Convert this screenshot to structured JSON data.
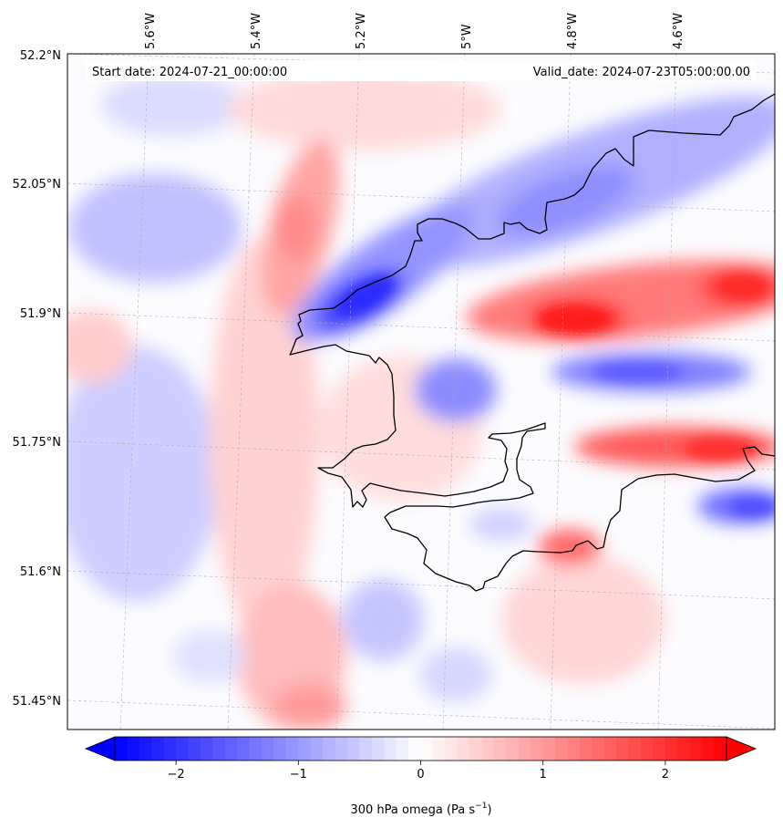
{
  "map": {
    "start_date_label": "Start date: 2024-07-21_00:00:00",
    "valid_date_label": "Valid_date: 2024-07-23T05:00:00.00",
    "longitude_ticks": [
      "5.6°W",
      "5.4°W",
      "5.2°W",
      "5°W",
      "4.8°W",
      "4.6°W"
    ],
    "latitude_ticks": [
      "52.2°N",
      "52.05°N",
      "51.9°N",
      "51.75°N",
      "51.6°N",
      "51.45°N"
    ],
    "field": "omega",
    "level": "300 hPa",
    "colormap": "bwr",
    "coastline_color": "#000000",
    "gridlines": true
  },
  "colorbar": {
    "label_prefix": "300 hPa omega (Pa s",
    "label_exponent": "−1",
    "label_suffix": ")",
    "tick_labels": [
      "−2",
      "−1",
      "0",
      "1",
      "2"
    ],
    "tick_values": [
      -2,
      -1,
      0,
      1,
      2
    ],
    "range": [
      -2.5,
      2.5
    ],
    "extend": "both",
    "color_min": "#0000ff",
    "color_mid": "#ffffff",
    "color_max": "#ff0000"
  }
}
